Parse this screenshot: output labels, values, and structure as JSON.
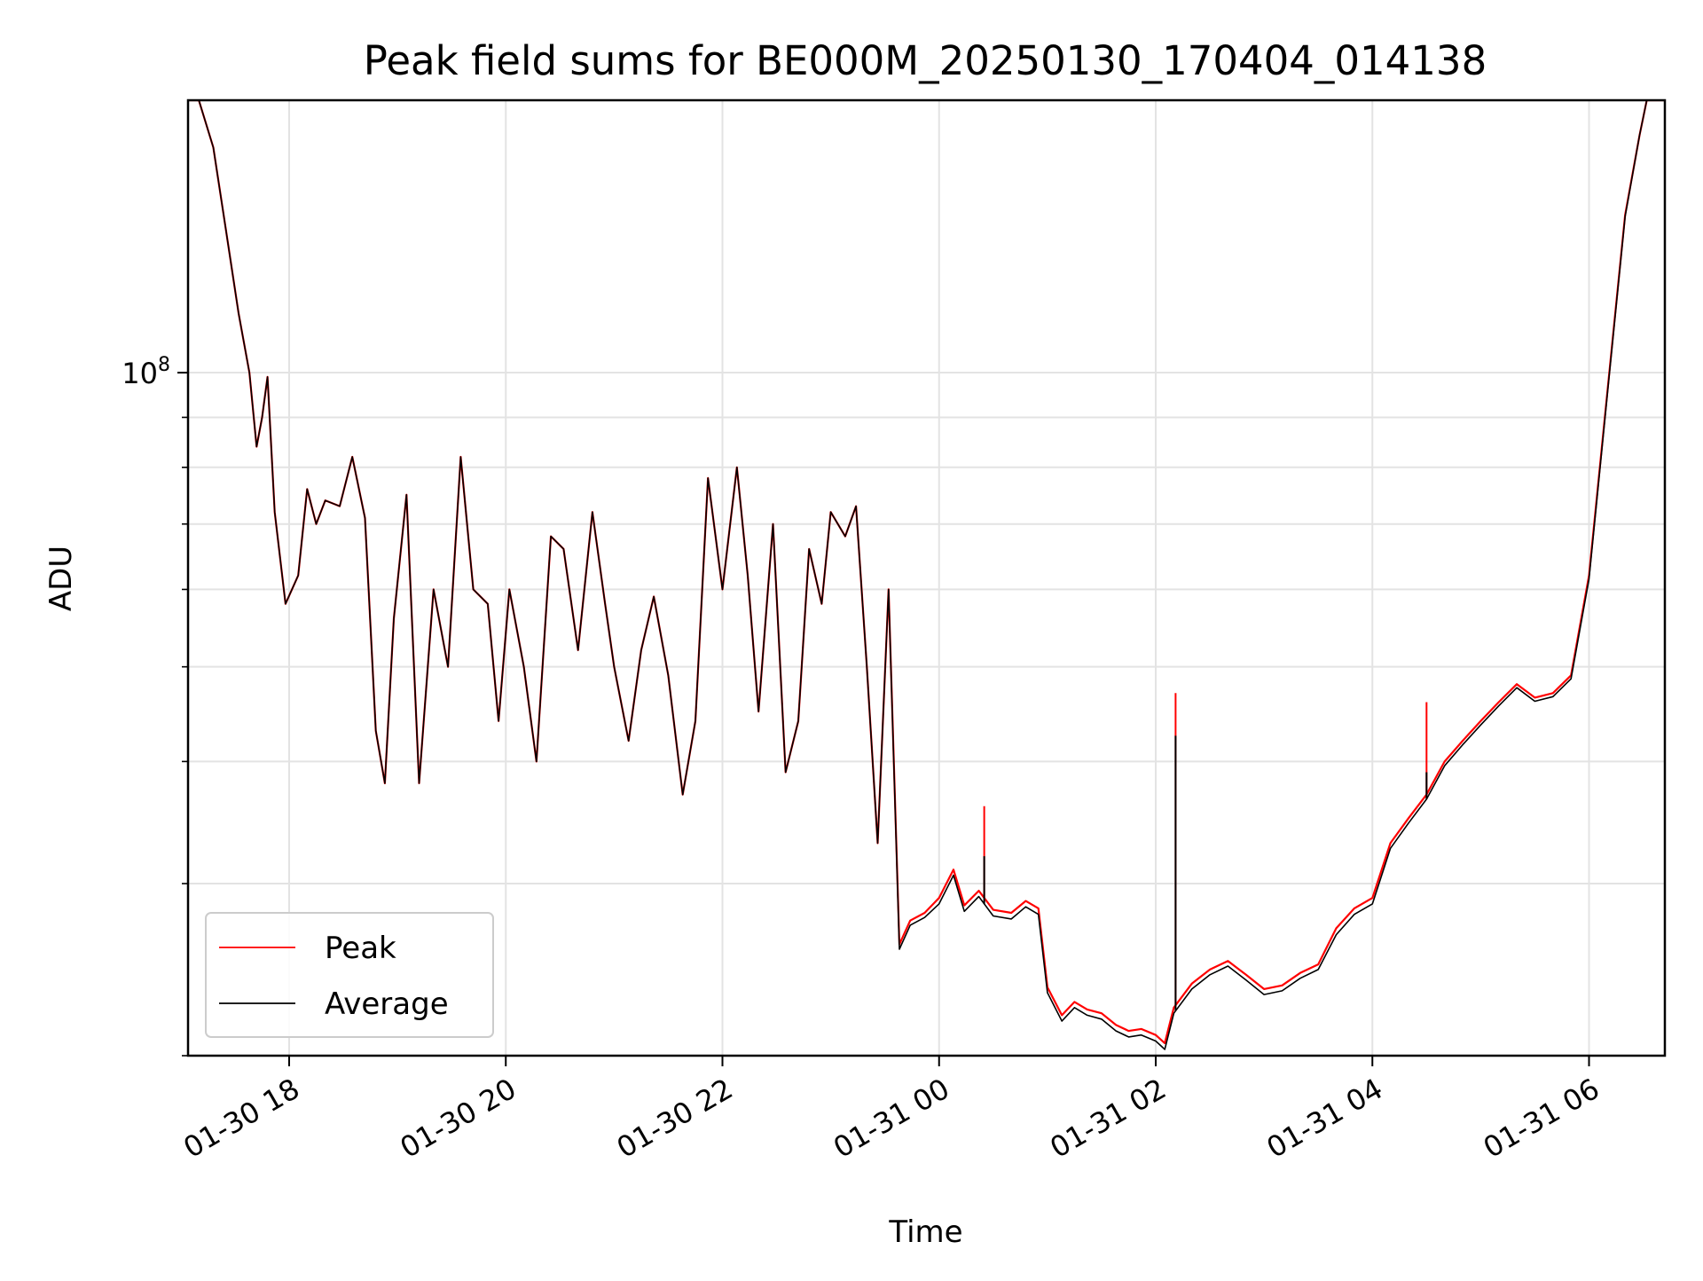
{
  "chart_data": {
    "type": "line",
    "title": "Peak field sums for BE000M_20250130_170404_014138",
    "xlabel": "Time",
    "ylabel": "ADU",
    "y_scale": "log",
    "ylim": [
      20000000,
      190000000
    ],
    "xlim": [
      "2025-01-30 17:04",
      "2025-01-31 06:42"
    ],
    "x_ticks": [
      {
        "t": "2025-01-30 18:00",
        "label": "01-30 18"
      },
      {
        "t": "2025-01-30 20:00",
        "label": "01-30 20"
      },
      {
        "t": "2025-01-30 22:00",
        "label": "01-30 22"
      },
      {
        "t": "2025-01-31 00:00",
        "label": "01-31 00"
      },
      {
        "t": "2025-01-31 02:00",
        "label": "01-31 02"
      },
      {
        "t": "2025-01-31 04:00",
        "label": "01-31 04"
      },
      {
        "t": "2025-01-31 06:00",
        "label": "01-31 06"
      }
    ],
    "y_major_ticks": [
      {
        "value": 100000000,
        "label": "10^8"
      }
    ],
    "y_minor_ticks": [
      20000000,
      30000000,
      40000000,
      50000000,
      60000000,
      70000000,
      80000000,
      90000000
    ],
    "grid": true,
    "legend": "lower-left",
    "series": [
      {
        "name": "Peak",
        "color": "#ff0000",
        "points": [
          [
            "2025-01-30 17:04",
            190000000
          ],
          [
            "2025-01-30 17:10",
            190000000
          ],
          [
            "2025-01-30 17:18",
            170000000
          ],
          [
            "2025-01-30 17:25",
            140000000
          ],
          [
            "2025-01-30 17:32",
            115000000
          ],
          [
            "2025-01-30 17:38",
            100000000
          ],
          [
            "2025-01-30 17:42",
            84000000
          ],
          [
            "2025-01-30 17:45",
            90000000
          ],
          [
            "2025-01-30 17:48",
            99000000
          ],
          [
            "2025-01-30 17:52",
            72000000
          ],
          [
            "2025-01-30 17:58",
            58000000
          ],
          [
            "2025-01-30 18:05",
            62000000
          ],
          [
            "2025-01-30 18:10",
            76000000
          ],
          [
            "2025-01-30 18:15",
            70000000
          ],
          [
            "2025-01-30 18:20",
            74000000
          ],
          [
            "2025-01-30 18:28",
            73000000
          ],
          [
            "2025-01-30 18:35",
            82000000
          ],
          [
            "2025-01-30 18:42",
            71000000
          ],
          [
            "2025-01-30 18:48",
            43000000
          ],
          [
            "2025-01-30 18:53",
            38000000
          ],
          [
            "2025-01-30 18:58",
            56000000
          ],
          [
            "2025-01-30 19:05",
            75000000
          ],
          [
            "2025-01-30 19:12",
            38000000
          ],
          [
            "2025-01-30 19:20",
            60000000
          ],
          [
            "2025-01-30 19:28",
            50000000
          ],
          [
            "2025-01-30 19:35",
            82000000
          ],
          [
            "2025-01-30 19:42",
            60000000
          ],
          [
            "2025-01-30 19:50",
            58000000
          ],
          [
            "2025-01-30 19:56",
            44000000
          ],
          [
            "2025-01-30 20:02",
            60000000
          ],
          [
            "2025-01-30 20:10",
            50000000
          ],
          [
            "2025-01-30 20:17",
            40000000
          ],
          [
            "2025-01-30 20:25",
            68000000
          ],
          [
            "2025-01-30 20:32",
            66000000
          ],
          [
            "2025-01-30 20:40",
            52000000
          ],
          [
            "2025-01-30 20:48",
            72000000
          ],
          [
            "2025-01-30 20:55",
            58000000
          ],
          [
            "2025-01-30 21:00",
            50000000
          ],
          [
            "2025-01-30 21:08",
            42000000
          ],
          [
            "2025-01-30 21:15",
            52000000
          ],
          [
            "2025-01-30 21:22",
            59000000
          ],
          [
            "2025-01-30 21:30",
            49000000
          ],
          [
            "2025-01-30 21:38",
            37000000
          ],
          [
            "2025-01-30 21:45",
            44000000
          ],
          [
            "2025-01-30 21:52",
            78000000
          ],
          [
            "2025-01-30 22:00",
            60000000
          ],
          [
            "2025-01-30 22:08",
            80000000
          ],
          [
            "2025-01-30 22:14",
            62000000
          ],
          [
            "2025-01-30 22:20",
            45000000
          ],
          [
            "2025-01-30 22:28",
            70000000
          ],
          [
            "2025-01-30 22:35",
            39000000
          ],
          [
            "2025-01-30 22:42",
            44000000
          ],
          [
            "2025-01-30 22:48",
            66000000
          ],
          [
            "2025-01-30 22:55",
            58000000
          ],
          [
            "2025-01-30 23:00",
            72000000
          ],
          [
            "2025-01-30 23:08",
            68000000
          ],
          [
            "2025-01-30 23:14",
            73000000
          ],
          [
            "2025-01-30 23:20",
            50000000
          ],
          [
            "2025-01-30 23:26",
            33000000
          ],
          [
            "2025-01-30 23:32",
            60000000
          ],
          [
            "2025-01-30 23:38",
            26000000
          ],
          [
            "2025-01-30 23:44",
            27500000
          ],
          [
            "2025-01-30 23:52",
            28000000
          ],
          [
            "2025-01-31 00:00",
            29000000
          ],
          [
            "2025-01-31 00:08",
            31000000
          ],
          [
            "2025-01-31 00:14",
            28500000
          ],
          [
            "2025-01-31 00:22",
            29500000
          ],
          [
            "2025-01-31 00:30",
            28200000
          ],
          [
            "2025-01-31 00:40",
            28000000
          ],
          [
            "2025-01-31 00:48",
            28800000
          ],
          [
            "2025-01-31 00:55",
            28300000
          ],
          [
            "2025-01-31 01:00",
            23500000
          ],
          [
            "2025-01-31 01:08",
            22000000
          ],
          [
            "2025-01-31 01:15",
            22700000
          ],
          [
            "2025-01-31 01:22",
            22300000
          ],
          [
            "2025-01-31 01:30",
            22100000
          ],
          [
            "2025-01-31 01:38",
            21500000
          ],
          [
            "2025-01-31 01:45",
            21200000
          ],
          [
            "2025-01-31 01:52",
            21300000
          ],
          [
            "2025-01-31 02:00",
            21000000
          ],
          [
            "2025-01-31 02:05",
            20600000
          ],
          [
            "2025-01-31 02:10",
            22400000
          ],
          [
            "2025-01-31 02:20",
            23700000
          ],
          [
            "2025-01-31 02:30",
            24500000
          ],
          [
            "2025-01-31 02:40",
            25000000
          ],
          [
            "2025-01-31 02:50",
            24200000
          ],
          [
            "2025-01-31 03:00",
            23400000
          ],
          [
            "2025-01-31 03:10",
            23600000
          ],
          [
            "2025-01-31 03:20",
            24300000
          ],
          [
            "2025-01-31 03:30",
            24800000
          ],
          [
            "2025-01-31 03:40",
            27000000
          ],
          [
            "2025-01-31 03:50",
            28300000
          ],
          [
            "2025-01-31 04:00",
            29000000
          ],
          [
            "2025-01-31 04:10",
            33000000
          ],
          [
            "2025-01-31 04:20",
            35000000
          ],
          [
            "2025-01-31 04:30",
            37000000
          ],
          [
            "2025-01-31 04:40",
            40000000
          ],
          [
            "2025-01-31 04:50",
            42000000
          ],
          [
            "2025-01-31 05:00",
            44000000
          ],
          [
            "2025-01-31 05:10",
            46000000
          ],
          [
            "2025-01-31 05:20",
            48000000
          ],
          [
            "2025-01-31 05:30",
            46500000
          ],
          [
            "2025-01-31 05:40",
            47000000
          ],
          [
            "2025-01-31 05:50",
            49000000
          ],
          [
            "2025-01-31 06:00",
            62000000
          ],
          [
            "2025-01-31 06:10",
            95000000
          ],
          [
            "2025-01-31 06:20",
            145000000
          ],
          [
            "2025-01-31 06:28",
            175000000
          ],
          [
            "2025-01-31 06:32",
            190000000
          ],
          [
            "2025-01-31 06:42",
            190000000
          ]
        ]
      },
      {
        "name": "Average",
        "color": "#000000",
        "points": [
          [
            "2025-01-30 17:04",
            190000000
          ],
          [
            "2025-01-30 17:10",
            190000000
          ],
          [
            "2025-01-30 17:18",
            170000000
          ],
          [
            "2025-01-30 17:25",
            140000000
          ],
          [
            "2025-01-30 17:32",
            115000000
          ],
          [
            "2025-01-30 17:38",
            100000000
          ],
          [
            "2025-01-30 17:42",
            84000000
          ],
          [
            "2025-01-30 17:45",
            90000000
          ],
          [
            "2025-01-30 17:48",
            99000000
          ],
          [
            "2025-01-30 17:52",
            72000000
          ],
          [
            "2025-01-30 17:58",
            58000000
          ],
          [
            "2025-01-30 18:05",
            62000000
          ],
          [
            "2025-01-30 18:10",
            76000000
          ],
          [
            "2025-01-30 18:15",
            70000000
          ],
          [
            "2025-01-30 18:20",
            74000000
          ],
          [
            "2025-01-30 18:28",
            73000000
          ],
          [
            "2025-01-30 18:35",
            82000000
          ],
          [
            "2025-01-30 18:42",
            71000000
          ],
          [
            "2025-01-30 18:48",
            43000000
          ],
          [
            "2025-01-30 18:53",
            38000000
          ],
          [
            "2025-01-30 18:58",
            56000000
          ],
          [
            "2025-01-30 19:05",
            75000000
          ],
          [
            "2025-01-30 19:12",
            38000000
          ],
          [
            "2025-01-30 19:20",
            60000000
          ],
          [
            "2025-01-30 19:28",
            50000000
          ],
          [
            "2025-01-30 19:35",
            82000000
          ],
          [
            "2025-01-30 19:42",
            60000000
          ],
          [
            "2025-01-30 19:50",
            58000000
          ],
          [
            "2025-01-30 19:56",
            44000000
          ],
          [
            "2025-01-30 20:02",
            60000000
          ],
          [
            "2025-01-30 20:10",
            50000000
          ],
          [
            "2025-01-30 20:17",
            40000000
          ],
          [
            "2025-01-30 20:25",
            68000000
          ],
          [
            "2025-01-30 20:32",
            66000000
          ],
          [
            "2025-01-30 20:40",
            52000000
          ],
          [
            "2025-01-30 20:48",
            72000000
          ],
          [
            "2025-01-30 20:55",
            58000000
          ],
          [
            "2025-01-30 21:00",
            50000000
          ],
          [
            "2025-01-30 21:08",
            42000000
          ],
          [
            "2025-01-30 21:15",
            52000000
          ],
          [
            "2025-01-30 21:22",
            59000000
          ],
          [
            "2025-01-30 21:30",
            49000000
          ],
          [
            "2025-01-30 21:38",
            37000000
          ],
          [
            "2025-01-30 21:45",
            44000000
          ],
          [
            "2025-01-30 21:52",
            78000000
          ],
          [
            "2025-01-30 22:00",
            60000000
          ],
          [
            "2025-01-30 22:08",
            80000000
          ],
          [
            "2025-01-30 22:14",
            62000000
          ],
          [
            "2025-01-30 22:20",
            45000000
          ],
          [
            "2025-01-30 22:28",
            70000000
          ],
          [
            "2025-01-30 22:35",
            39000000
          ],
          [
            "2025-01-30 22:42",
            44000000
          ],
          [
            "2025-01-30 22:48",
            66000000
          ],
          [
            "2025-01-30 22:55",
            58000000
          ],
          [
            "2025-01-30 23:00",
            72000000
          ],
          [
            "2025-01-30 23:08",
            68000000
          ],
          [
            "2025-01-30 23:14",
            73000000
          ],
          [
            "2025-01-30 23:20",
            50000000
          ],
          [
            "2025-01-30 23:26",
            33000000
          ],
          [
            "2025-01-30 23:32",
            60000000
          ],
          [
            "2025-01-30 23:38",
            25700000
          ],
          [
            "2025-01-30 23:44",
            27200000
          ],
          [
            "2025-01-30 23:52",
            27700000
          ],
          [
            "2025-01-31 00:00",
            28600000
          ],
          [
            "2025-01-31 00:08",
            30600000
          ],
          [
            "2025-01-31 00:14",
            28100000
          ],
          [
            "2025-01-31 00:22",
            29100000
          ],
          [
            "2025-01-31 00:30",
            27800000
          ],
          [
            "2025-01-31 00:40",
            27600000
          ],
          [
            "2025-01-31 00:48",
            28400000
          ],
          [
            "2025-01-31 00:55",
            27900000
          ],
          [
            "2025-01-31 01:00",
            23200000
          ],
          [
            "2025-01-31 01:08",
            21700000
          ],
          [
            "2025-01-31 01:15",
            22400000
          ],
          [
            "2025-01-31 01:22",
            22000000
          ],
          [
            "2025-01-31 01:30",
            21800000
          ],
          [
            "2025-01-31 01:38",
            21200000
          ],
          [
            "2025-01-31 01:45",
            20900000
          ],
          [
            "2025-01-31 01:52",
            21000000
          ],
          [
            "2025-01-31 02:00",
            20700000
          ],
          [
            "2025-01-31 02:05",
            20300000
          ],
          [
            "2025-01-31 02:10",
            22100000
          ],
          [
            "2025-01-31 02:20",
            23400000
          ],
          [
            "2025-01-31 02:30",
            24200000
          ],
          [
            "2025-01-31 02:40",
            24700000
          ],
          [
            "2025-01-31 02:50",
            23900000
          ],
          [
            "2025-01-31 03:00",
            23100000
          ],
          [
            "2025-01-31 03:10",
            23300000
          ],
          [
            "2025-01-31 03:20",
            24000000
          ],
          [
            "2025-01-31 03:30",
            24500000
          ],
          [
            "2025-01-31 03:40",
            26600000
          ],
          [
            "2025-01-31 03:50",
            27900000
          ],
          [
            "2025-01-31 04:00",
            28600000
          ],
          [
            "2025-01-31 04:10",
            32600000
          ],
          [
            "2025-01-31 04:20",
            34600000
          ],
          [
            "2025-01-31 04:30",
            36600000
          ],
          [
            "2025-01-31 04:40",
            39600000
          ],
          [
            "2025-01-31 04:50",
            41600000
          ],
          [
            "2025-01-31 05:00",
            43600000
          ],
          [
            "2025-01-31 05:10",
            45600000
          ],
          [
            "2025-01-31 05:20",
            47600000
          ],
          [
            "2025-01-31 05:30",
            46100000
          ],
          [
            "2025-01-31 05:40",
            46600000
          ],
          [
            "2025-01-31 05:50",
            48600000
          ],
          [
            "2025-01-31 06:00",
            61500000
          ],
          [
            "2025-01-31 06:10",
            94500000
          ],
          [
            "2025-01-31 06:20",
            144500000
          ],
          [
            "2025-01-31 06:28",
            175000000
          ],
          [
            "2025-01-31 06:32",
            190000000
          ],
          [
            "2025-01-31 06:42",
            190000000
          ]
        ]
      }
    ],
    "spikes": [
      {
        "series": "Peak",
        "t": "2025-01-31 00:25",
        "value": 36000000
      },
      {
        "series": "Average",
        "t": "2025-01-31 00:25",
        "value": 32000000
      },
      {
        "series": "Peak",
        "t": "2025-01-31 02:11",
        "value": 47000000
      },
      {
        "series": "Average",
        "t": "2025-01-31 02:11",
        "value": 42500000
      },
      {
        "series": "Peak",
        "t": "2025-01-31 04:30",
        "value": 46000000
      },
      {
        "series": "Average",
        "t": "2025-01-31 04:30",
        "value": 39000000
      }
    ]
  }
}
